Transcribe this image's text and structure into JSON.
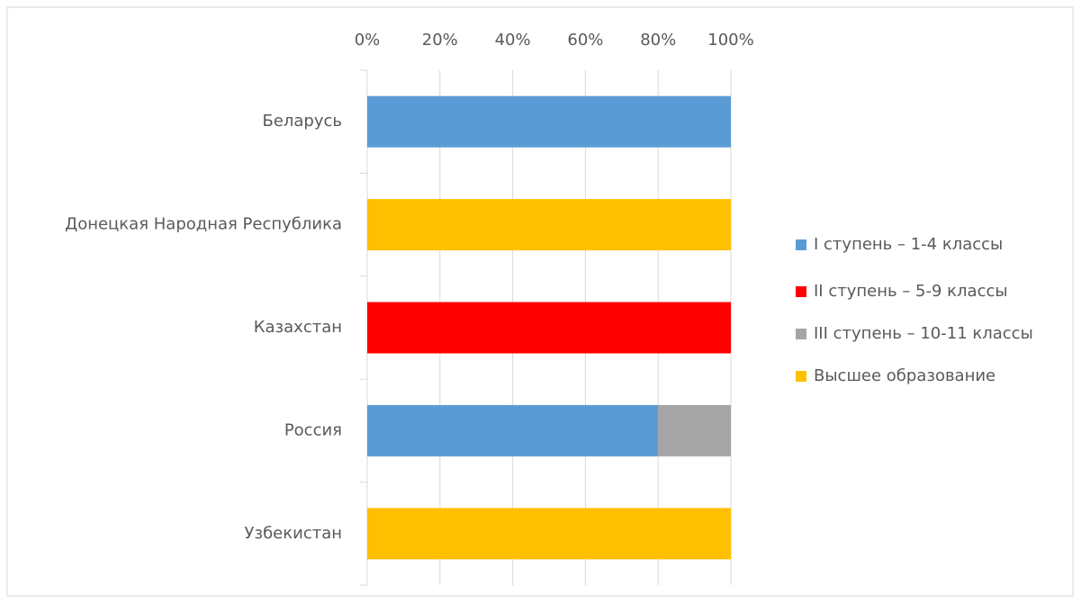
{
  "chart_data": {
    "type": "stacked_bar_horizontal",
    "categories": [
      "Беларусь",
      "Донецкая Народная Республика",
      "Казахстан",
      "Россия",
      "Узбекистан"
    ],
    "series": [
      {
        "name": "I ступень – 1-4 классы",
        "color": "#5b9bd5",
        "values": [
          100,
          0,
          0,
          80,
          0
        ]
      },
      {
        "name": "II ступень – 5-9 классы",
        "color": "#ff0000",
        "values": [
          0,
          0,
          100,
          0,
          0
        ]
      },
      {
        "name": "III ступень – 10-11 классы",
        "color": "#a5a5a5",
        "values": [
          0,
          0,
          0,
          20,
          0
        ]
      },
      {
        "name": "Высшее образование",
        "color": "#ffc000",
        "values": [
          0,
          100,
          0,
          0,
          100
        ]
      }
    ],
    "xlim": [
      0,
      100
    ],
    "xticks": [
      {
        "value": 0,
        "label": "0%"
      },
      {
        "value": 20,
        "label": "20%"
      },
      {
        "value": 40,
        "label": "40%"
      },
      {
        "value": 60,
        "label": "60%"
      },
      {
        "value": 80,
        "label": "80%"
      },
      {
        "value": 100,
        "label": "100%"
      }
    ],
    "grid": true,
    "legend": "right"
  }
}
